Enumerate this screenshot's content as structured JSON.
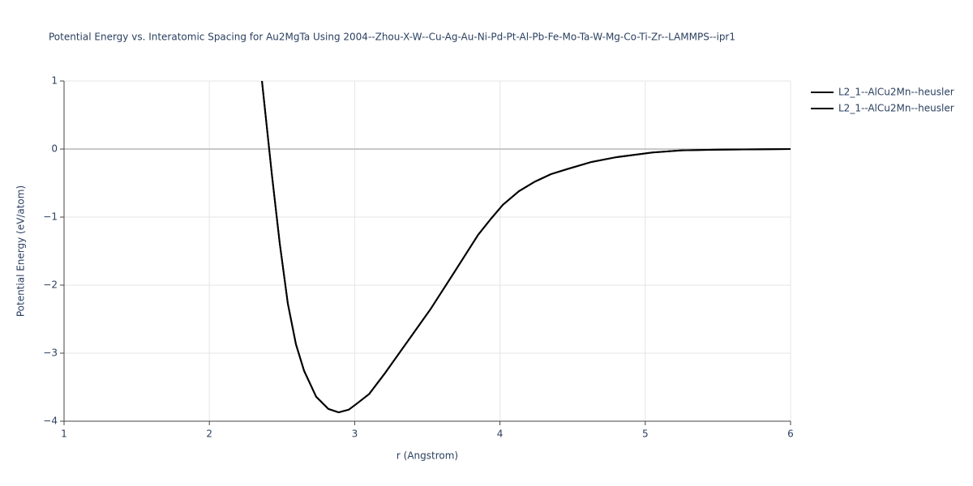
{
  "chart_data": {
    "type": "line",
    "title": "Potential Energy vs. Interatomic Spacing for Au2MgTa Using 2004--Zhou-X-W--Cu-Ag-Au-Ni-Pd-Pt-Al-Pb-Fe-Mo-Ta-W-Mg-Co-Ti-Zr--LAMMPS--ipr1",
    "x_label": "r (Angstrom)",
    "y_label": "Potential Energy (eV/atom)",
    "xlim": [
      1,
      6
    ],
    "ylim": [
      -4,
      1
    ],
    "xticks": [
      1,
      2,
      3,
      4,
      5,
      6
    ],
    "yticks": [
      {
        "value": -4,
        "label": "−4"
      },
      {
        "value": -3,
        "label": "−3"
      },
      {
        "value": -2,
        "label": "−2"
      },
      {
        "value": -1,
        "label": "−1"
      },
      0,
      1
    ],
    "grid": true,
    "legend": "top-right",
    "x": [
      2.362,
      2.43,
      2.484,
      2.54,
      2.596,
      2.652,
      2.735,
      2.819,
      2.89,
      2.96,
      3.01,
      3.1,
      3.21,
      3.35,
      3.52,
      3.68,
      3.85,
      3.94,
      4.02,
      4.13,
      4.24,
      4.35,
      4.47,
      4.63,
      4.8,
      5.05,
      5.25,
      5.47,
      6.0
    ],
    "series": [
      {
        "name": "L2_1--AlCu2Mn--heusler",
        "color": "#000000",
        "values": [
          1,
          -0.37,
          -1.38,
          -2.27,
          -2.87,
          -3.26,
          -3.64,
          -3.82,
          -3.87,
          -3.83,
          -3.75,
          -3.6,
          -3.29,
          -2.87,
          -2.36,
          -1.83,
          -1.26,
          -1.02,
          -0.82,
          -0.62,
          -0.48,
          -0.37,
          -0.29,
          -0.19,
          -0.12,
          -0.05,
          -0.02,
          -0.01,
          0
        ]
      },
      {
        "name": "L2_1--AlCu2Mn--heusler",
        "color": "#000000",
        "values": [
          1,
          -0.37,
          -1.38,
          -2.27,
          -2.87,
          -3.26,
          -3.64,
          -3.82,
          -3.87,
          -3.83,
          -3.75,
          -3.6,
          -3.29,
          -2.87,
          -2.36,
          -1.83,
          -1.26,
          -1.02,
          -0.82,
          -0.62,
          -0.48,
          -0.37,
          -0.29,
          -0.19,
          -0.12,
          -0.05,
          -0.02,
          -0.01,
          0
        ]
      }
    ]
  }
}
